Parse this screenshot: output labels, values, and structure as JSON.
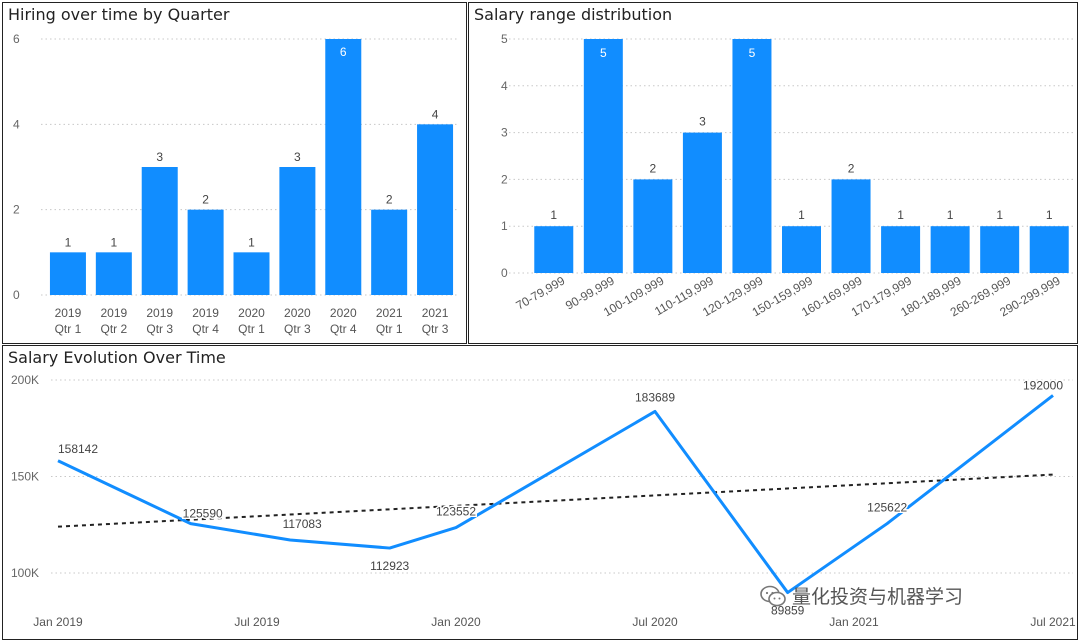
{
  "colors": {
    "bar": "#118dff",
    "trend": "#222222",
    "grid": "#c8c8c8",
    "axis_text": "#666666"
  },
  "watermark": {
    "icon": "wechat-icon",
    "text": "量化投资与机器学习"
  },
  "chart_data": [
    {
      "type": "bar",
      "title": "Hiring over time by Quarter",
      "categories": [
        [
          "2019",
          "Qtr 1"
        ],
        [
          "2019",
          "Qtr 2"
        ],
        [
          "2019",
          "Qtr 3"
        ],
        [
          "2019",
          "Qtr 4"
        ],
        [
          "2020",
          "Qtr 1"
        ],
        [
          "2020",
          "Qtr 3"
        ],
        [
          "2020",
          "Qtr 4"
        ],
        [
          "2021",
          "Qtr 1"
        ],
        [
          "2021",
          "Qtr 3"
        ]
      ],
      "values": [
        1,
        1,
        3,
        2,
        1,
        3,
        6,
        2,
        4
      ],
      "ylim": [
        0,
        6
      ],
      "yticks": [
        0,
        2,
        4,
        6
      ],
      "grid": true
    },
    {
      "type": "bar",
      "title": "Salary range distribution",
      "categories": [
        "70-79,999",
        "90-99,999",
        "100-109,999",
        "110-119,999",
        "120-129,999",
        "150-159,999",
        "160-169,999",
        "170-179,999",
        "180-189,999",
        "260-269,999",
        "290-299,999"
      ],
      "values": [
        1,
        5,
        2,
        3,
        5,
        1,
        2,
        1,
        1,
        1,
        1
      ],
      "ylim": [
        0,
        5
      ],
      "yticks": [
        0,
        1,
        2,
        3,
        4,
        5
      ],
      "grid": true
    },
    {
      "type": "line",
      "title": "Salary Evolution Over Time",
      "x": [
        "2019-01",
        "2019-05",
        "2019-08",
        "2019-11",
        "2020-01",
        "2020-07",
        "2020-11",
        "2021-02",
        "2021-07"
      ],
      "values": [
        158142,
        125590,
        117083,
        112923,
        123552,
        183689,
        89859,
        125622,
        192000
      ],
      "trendline": {
        "style": "dotted",
        "start": 124000,
        "end": 151000
      },
      "xticks": [
        "Jan 2019",
        "Jul 2019",
        "Jan 2020",
        "Jul 2020",
        "Jan 2021",
        "Jul 2021"
      ],
      "yticks": [
        100000,
        150000,
        200000
      ],
      "ytick_labels": [
        "100K",
        "150K",
        "200K"
      ],
      "ylim": [
        80000,
        200000
      ],
      "grid": true
    }
  ]
}
